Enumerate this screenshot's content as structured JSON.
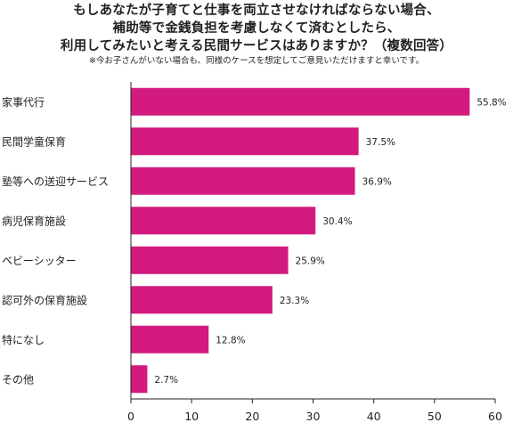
{
  "title_lines": [
    "もしあなたが子育てと仕事を両立させなければならない場合、",
    "補助等で金銭負担を考慮しなくて済むとしたら、",
    "利用してみたいと考える民間サービスはありますか？（複数回答）"
  ],
  "note": "※今お子さんがいない場合も、同様のケースを想定してご意見いただけますと幸いです。",
  "chart_data": {
    "type": "bar",
    "orientation": "horizontal",
    "categories": [
      "家事代行",
      "民間学童保育",
      "塾等への送迎サービス",
      "病児保育施設",
      "ベビーシッター",
      "認可外の保育施設",
      "特になし",
      "その他"
    ],
    "values": [
      55.8,
      37.5,
      36.9,
      30.4,
      25.9,
      23.3,
      12.8,
      2.7
    ],
    "value_labels": [
      "55.8%",
      "37.5%",
      "36.9%",
      "30.4%",
      "25.9%",
      "23.3%",
      "12.8%",
      "2.7%"
    ],
    "xlim": [
      0,
      60
    ],
    "xticks": [
      "0",
      "10",
      "20",
      "30",
      "40",
      "50",
      "60"
    ],
    "bar_color": "#d21a7f",
    "grid": false,
    "legend": "none"
  }
}
